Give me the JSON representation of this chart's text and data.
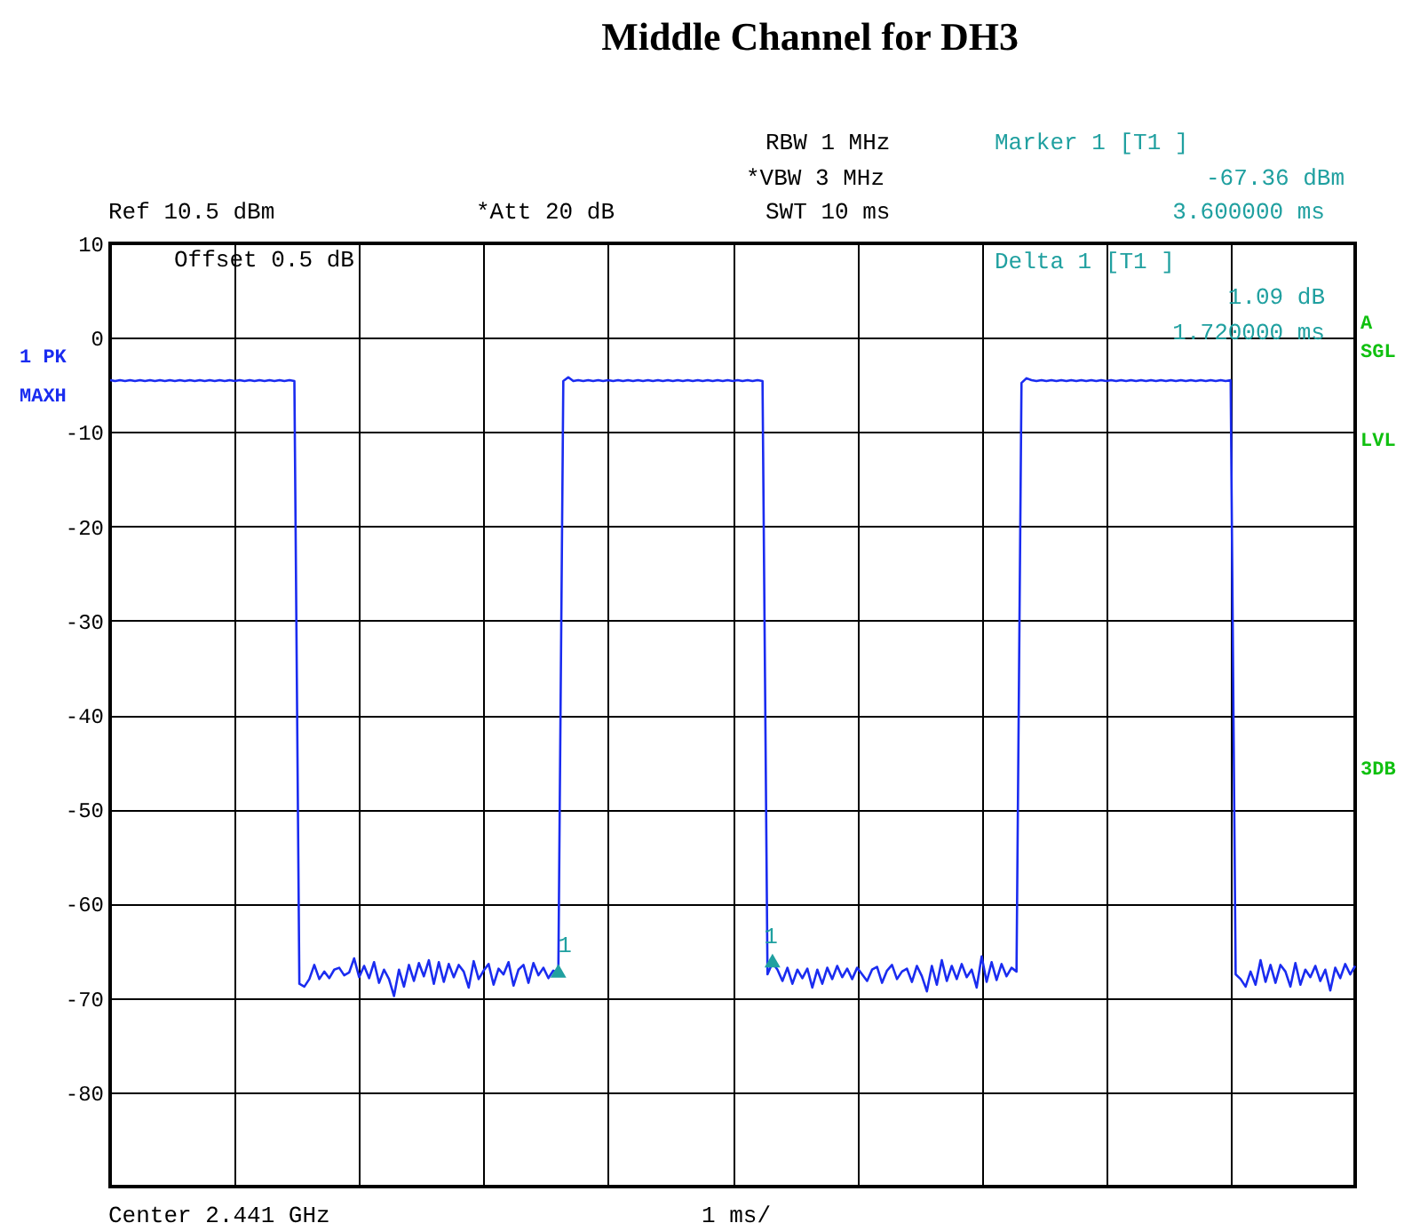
{
  "chart_data": {
    "type": "line",
    "title": "Middle Channel for DH3",
    "annotations": [
      "RBW 1 MHz",
      "*VBW 3 MHz",
      "SWT 10 ms",
      "Marker 1 [T1 ]",
      "-67.36 dBm",
      "3.600000 ms",
      "Ref 10.5 dBm",
      "*Att 20 dB",
      "Offset 0.5 dB",
      "Delta 1 [T1 ]",
      "1.09 dB",
      "1.720000 ms",
      "Center 2.441 GHz",
      "1 ms/",
      "1 PK",
      "MAXH",
      "A",
      "SGL",
      "LVL",
      "3DB",
      "1",
      "1"
    ],
    "categories": [
      null,
      null,
      null,
      null,
      null,
      null,
      null,
      null,
      null,
      null,
      null,
      null,
      null,
      null,
      null,
      null,
      null,
      null,
      null,
      null,
      null,
      null,
      null,
      null,
      null,
      null,
      null,
      null,
      null,
      null,
      null,
      null,
      null,
      null,
      null,
      null,
      null,
      null,
      null,
      null,
      null,
      null,
      null,
      null,
      null,
      null,
      null,
      null,
      null,
      null,
      null,
      null,
      null,
      null,
      null,
      null,
      null,
      null,
      null,
      null,
      null,
      null,
      null,
      null,
      null,
      null,
      null,
      null,
      null,
      null,
      null,
      null,
      null,
      null,
      null,
      null,
      null,
      null,
      null,
      null,
      null,
      null,
      null,
      null,
      null,
      null,
      null,
      null,
      null,
      null,
      null,
      null,
      null,
      null,
      null,
      null,
      null,
      null,
      null,
      null,
      null,
      null,
      null,
      null,
      null,
      null,
      null,
      null,
      null,
      null,
      null,
      null,
      null,
      null,
      null,
      null,
      null,
      null,
      null,
      null,
      null,
      null,
      null,
      null,
      null,
      null,
      null,
      null,
      null,
      null,
      null,
      null,
      null,
      null,
      null,
      null,
      null,
      null,
      null,
      null,
      null,
      null,
      null,
      null,
      null,
      null,
      null,
      null,
      null,
      null,
      null,
      null,
      null,
      null,
      null,
      null,
      null,
      null,
      null,
      null,
      null,
      null,
      null,
      null,
      null,
      null,
      null,
      null,
      null,
      null,
      null,
      null,
      null,
      null,
      null,
      null,
      null,
      null,
      null,
      null,
      null,
      null,
      null,
      null,
      null,
      null,
      null,
      null,
      null,
      null,
      null,
      null,
      null,
      null,
      null,
      null,
      null,
      null,
      null,
      null,
      null,
      null,
      null,
      null,
      null,
      null,
      null,
      null,
      null,
      null,
      null,
      null,
      null,
      null,
      null,
      null,
      null,
      null,
      null,
      null,
      null,
      null,
      null,
      null,
      null,
      null,
      null,
      null,
      null,
      null,
      null,
      null,
      null,
      null,
      null,
      null,
      null,
      null,
      null,
      null,
      null,
      null,
      null,
      null,
      null,
      null,
      null,
      null,
      null,
      null,
      null
    ],
    "ylim": [
      -90,
      10
    ],
    "yticks": [
      10,
      0,
      -10,
      -20,
      -30,
      -40,
      -50,
      -60,
      -70,
      -80,
      {
        "value": -90,
        "label": null
      }
    ],
    "tick_labels": "y",
    "grid": true,
    "series": [
      {
        "color": "#1a2cf0",
        "line_style": "solid",
        "marker": "none",
        "values": [
          -4.5,
          -4.6,
          -4.5,
          -4.6,
          -4.5,
          -4.6,
          -4.5,
          -4.6,
          -4.5,
          -4.6,
          -4.5,
          -4.6,
          -4.5,
          -4.6,
          -4.5,
          -4.6,
          -4.5,
          -4.6,
          -4.5,
          -4.6,
          -4.5,
          -4.6,
          -4.5,
          -4.6,
          -4.5,
          -4.6,
          -4.5,
          -4.6,
          -4.5,
          -4.6,
          -4.5,
          -4.6,
          -4.5,
          -4.6,
          -4.5,
          -4.6,
          -4.5,
          -4.6,
          -68.5,
          -68.8,
          -68.0,
          -66.5,
          -68.0,
          -67.2,
          -67.9,
          -67.0,
          -66.8,
          -67.6,
          -67.3,
          -65.8,
          -67.8,
          -66.6,
          -67.9,
          -66.2,
          -68.4,
          -67.0,
          -68.0,
          -69.8,
          -67.0,
          -68.8,
          -66.5,
          -68.2,
          -66.3,
          -67.7,
          -66.0,
          -68.5,
          -66.2,
          -68.3,
          -66.4,
          -67.8,
          -66.5,
          -67.2,
          -68.9,
          -66.1,
          -68.0,
          -67.1,
          -66.4,
          -68.6,
          -66.9,
          -67.5,
          -66.2,
          -68.7,
          -67.0,
          -66.5,
          -68.4,
          -66.3,
          -67.6,
          -66.8,
          -67.9,
          -67.1,
          -67.36,
          -4.6,
          -4.2,
          -4.6,
          -4.5,
          -4.6,
          -4.5,
          -4.6,
          -4.5,
          -4.6,
          -4.5,
          -4.6,
          -4.5,
          -4.6,
          -4.5,
          -4.6,
          -4.5,
          -4.6,
          -4.5,
          -4.6,
          -4.5,
          -4.6,
          -4.5,
          -4.6,
          -4.5,
          -4.6,
          -4.5,
          -4.6,
          -4.5,
          -4.6,
          -4.5,
          -4.6,
          -4.5,
          -4.6,
          -4.5,
          -4.6,
          -4.5,
          -4.6,
          -4.5,
          -4.6,
          -4.5,
          -4.6,
          -67.5,
          -66.27,
          -67.0,
          -68.2,
          -66.8,
          -68.5,
          -67.0,
          -67.9,
          -66.9,
          -68.9,
          -67.0,
          -68.5,
          -66.8,
          -68.0,
          -66.6,
          -67.8,
          -66.9,
          -68.0,
          -66.8,
          -67.5,
          -68.2,
          -67.0,
          -66.7,
          -68.4,
          -67.1,
          -66.5,
          -68.0,
          -67.2,
          -66.9,
          -68.3,
          -66.6,
          -67.7,
          -69.3,
          -66.6,
          -68.6,
          -66.0,
          -68.2,
          -66.6,
          -68.0,
          -66.4,
          -67.8,
          -67.0,
          -68.9,
          -65.6,
          -68.3,
          -66.2,
          -68.1,
          -66.4,
          -67.7,
          -66.8,
          -67.2,
          -4.8,
          -4.3,
          -4.5,
          -4.6,
          -4.5,
          -4.6,
          -4.5,
          -4.6,
          -4.5,
          -4.6,
          -4.5,
          -4.6,
          -4.5,
          -4.6,
          -4.5,
          -4.6,
          -4.5,
          -4.6,
          -4.5,
          -4.6,
          -4.5,
          -4.6,
          -4.5,
          -4.6,
          -4.5,
          -4.6,
          -4.5,
          -4.6,
          -4.5,
          -4.6,
          -4.5,
          -4.6,
          -4.5,
          -4.6,
          -4.5,
          -4.6,
          -4.5,
          -4.6,
          -4.5,
          -4.6,
          -4.5,
          -4.6,
          -4.5,
          -67.5,
          -68.0,
          -68.8,
          -67.2,
          -68.6,
          -66.0,
          -68.3,
          -66.5,
          -68.4,
          -66.5,
          -67.2,
          -68.8,
          -66.3,
          -68.6,
          -67.0,
          -67.8,
          -66.6,
          -68.2,
          -67.0,
          -69.2,
          -66.8,
          -67.9,
          -66.4,
          -67.5,
          -66.6
        ]
      },
      {
        "type": "scatter",
        "color": "#20a0a0",
        "marker": "triangle",
        "values": [
          null,
          null,
          null,
          null,
          null,
          null,
          null,
          null,
          null,
          null,
          null,
          null,
          null,
          null,
          null,
          null,
          null,
          null,
          null,
          null,
          null,
          null,
          null,
          null,
          null,
          null,
          null,
          null,
          null,
          null,
          null,
          null,
          null,
          null,
          null,
          null,
          null,
          null,
          null,
          null,
          null,
          null,
          null,
          null,
          null,
          null,
          null,
          null,
          null,
          null,
          null,
          null,
          null,
          null,
          null,
          null,
          null,
          null,
          null,
          null,
          null,
          null,
          null,
          null,
          null,
          null,
          null,
          null,
          null,
          null,
          null,
          null,
          null,
          null,
          null,
          null,
          null,
          null,
          null,
          null,
          null,
          null,
          null,
          null,
          null,
          null,
          null,
          null,
          null,
          null,
          -67.36,
          null,
          null,
          null,
          null,
          null,
          null,
          null,
          null,
          null,
          null,
          null,
          null,
          null,
          null,
          null,
          null,
          null,
          null,
          null,
          null,
          null,
          null,
          null,
          null,
          null,
          null,
          null,
          null,
          null,
          null,
          null,
          null,
          null,
          null,
          null,
          null,
          null,
          null,
          null,
          null,
          null,
          null,
          -66.27,
          null,
          null,
          null,
          null,
          null,
          null,
          null,
          null,
          null,
          null,
          null,
          null,
          null,
          null,
          null,
          null,
          null,
          null,
          null,
          null,
          null,
          null,
          null,
          null,
          null,
          null,
          null,
          null,
          null,
          null,
          null,
          null,
          null,
          null,
          null,
          null,
          null,
          null,
          null,
          null,
          null,
          null,
          null,
          null,
          null,
          null,
          null,
          null,
          null,
          null,
          null,
          null,
          null,
          null,
          null,
          null,
          null,
          null,
          null,
          null,
          null,
          null,
          null,
          null,
          null,
          null,
          null,
          null,
          null,
          null,
          null,
          null,
          null,
          null,
          null,
          null,
          null,
          null,
          null,
          null,
          null,
          null,
          null,
          null,
          null,
          null,
          null,
          null,
          null,
          null,
          null,
          null,
          null,
          null,
          null,
          null,
          null,
          null,
          null,
          null,
          null,
          null,
          null,
          null,
          null,
          null,
          null,
          null,
          null,
          null,
          null,
          null,
          null,
          null,
          null,
          null,
          null
        ]
      }
    ]
  }
}
